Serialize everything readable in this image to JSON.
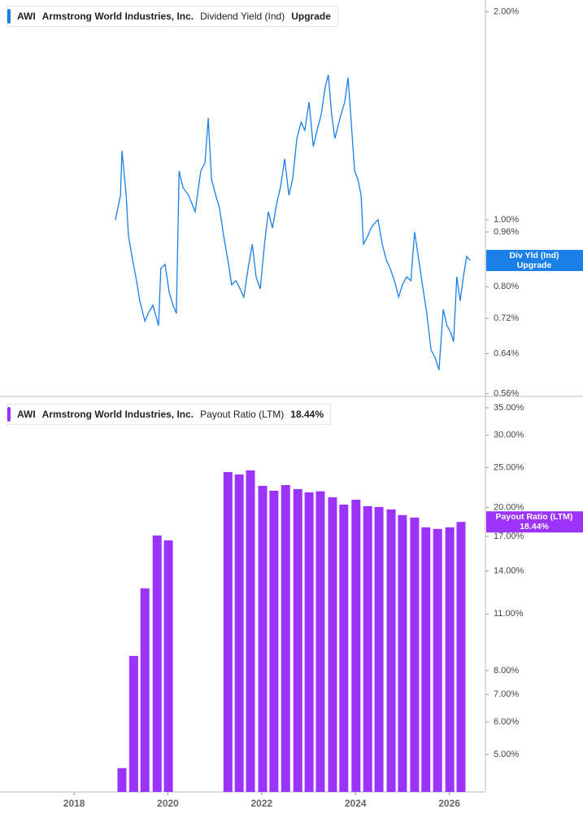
{
  "chart_data": [
    {
      "type": "line",
      "log_scale": true,
      "ticker": "AWI",
      "company": "Armstrong World Industries, Inc.",
      "series": [
        {
          "name": "Dividend Yield (Ind)",
          "short_name": "Div Yld (Ind)",
          "color": "#1a7fe6",
          "values": [
            1.0,
            1.085,
            1.259,
            1.085,
            0.947,
            0.873,
            0.816,
            0.763,
            0.713,
            0.732,
            0.752,
            0.703,
            0.85,
            0.862,
            0.784,
            0.752,
            0.732,
            1.176,
            1.114,
            1.085,
            1.027,
            1.176,
            1.209,
            1.403,
            1.145,
            1.085,
            1.041,
            0.947,
            0.873,
            0.805,
            0.816,
            0.794,
            0.773,
            0.85,
            0.922,
            0.827,
            0.794,
            0.922,
            1.027,
            0.973,
            1.056,
            1.114,
            1.225,
            1.085,
            1.145,
            1.311,
            1.384,
            1.347,
            1.481,
            1.276,
            1.347,
            1.422,
            1.564,
            1.62,
            1.422,
            1.311,
            1.403,
            1.481,
            1.606,
            1.384,
            1.176,
            1.145,
            1.085,
            0.922,
            0.947,
            0.973,
            0.987,
            1.0,
            0.922,
            0.873,
            0.85,
            0.816,
            0.773,
            0.805,
            0.827,
            0.816,
            0.96,
            0.873,
            0.794,
            0.732,
            0.648,
            0.631,
            0.606,
            0.742,
            0.703,
            0.684,
            0.666,
            0.827,
            0.763,
            0.827,
            0.885,
            0.873
          ]
        }
      ],
      "rating": "Upgrade",
      "x": [
        2018.88,
        2018.99,
        2019.02,
        2019.11,
        2019.16,
        2019.25,
        2019.33,
        2019.4,
        2019.51,
        2019.58,
        2019.68,
        2019.8,
        2019.85,
        2019.94,
        2020.03,
        2020.11,
        2020.18,
        2020.24,
        2020.32,
        2020.44,
        2020.58,
        2020.7,
        2020.79,
        2020.86,
        2020.93,
        2021.02,
        2021.1,
        2021.19,
        2021.28,
        2021.36,
        2021.45,
        2021.54,
        2021.62,
        2021.71,
        2021.8,
        2021.88,
        2021.97,
        2022.06,
        2022.14,
        2022.23,
        2022.32,
        2022.4,
        2022.49,
        2022.58,
        2022.66,
        2022.75,
        2022.84,
        2022.92,
        2023.01,
        2023.1,
        2023.18,
        2023.27,
        2023.36,
        2023.42,
        2023.49,
        2023.56,
        2023.67,
        2023.77,
        2023.84,
        2023.91,
        2023.98,
        2024.05,
        2024.12,
        2024.17,
        2024.26,
        2024.33,
        2024.4,
        2024.48,
        2024.57,
        2024.66,
        2024.74,
        2024.83,
        2024.92,
        2025.0,
        2025.09,
        2025.18,
        2025.26,
        2025.35,
        2025.44,
        2025.52,
        2025.61,
        2025.7,
        2025.78,
        2025.87,
        2025.95,
        2026.04,
        2026.09,
        2026.16,
        2026.23,
        2026.3,
        2026.37,
        2026.44
      ],
      "xlim": [
        2016.42,
        2026.77
      ],
      "ylim": [
        0.555,
        2.08
      ],
      "yticks": [
        {
          "value": 2,
          "label": "2.00%"
        },
        {
          "value": 1,
          "label": "1.00%"
        },
        {
          "value": 0.96,
          "label": "0.96%"
        },
        {
          "value": 0.8,
          "label": "0.80%"
        },
        {
          "value": 0.72,
          "label": "0.72%"
        },
        {
          "value": 0.64,
          "label": "0.64%"
        },
        {
          "value": 0.56,
          "label": "0.56%"
        }
      ]
    },
    {
      "type": "bar",
      "log_scale": true,
      "ticker": "AWI",
      "company": "Armstrong World Industries, Inc.",
      "series": [
        {
          "name": "Payout Ratio (LTM)",
          "color": "#9b33fa",
          "values": [
            4.63,
            8.69,
            12.7,
            17.09,
            16.63,
            24.4,
            24.07,
            24.63,
            22.58,
            21.97,
            22.68,
            22.17,
            21.77,
            21.9,
            21.18,
            20.33,
            20.89,
            20.15,
            20.05,
            19.78,
            19.16,
            18.9,
            17.89,
            17.73,
            17.89,
            18.44
          ]
        }
      ],
      "legend_value": "18.44%",
      "x": [
        2019.02,
        2019.27,
        2019.51,
        2019.77,
        2020.01,
        2021.28,
        2021.52,
        2021.76,
        2022.02,
        2022.26,
        2022.51,
        2022.77,
        2023.01,
        2023.25,
        2023.51,
        2023.75,
        2024.01,
        2024.26,
        2024.5,
        2024.76,
        2025.0,
        2025.26,
        2025.5,
        2025.75,
        2026.01,
        2026.25
      ],
      "xlim": [
        2016.42,
        2026.77
      ],
      "xticks": [
        2018,
        2020,
        2022,
        2024,
        2026
      ],
      "ylim": [
        4.05,
        36.3
      ],
      "yticks": [
        {
          "value": 35,
          "label": "35.00%"
        },
        {
          "value": 30,
          "label": "30.00%"
        },
        {
          "value": 25,
          "label": "25.00%"
        },
        {
          "value": 20,
          "label": "20.00%"
        },
        {
          "value": 17,
          "label": "17.00%"
        },
        {
          "value": 14,
          "label": "14.00%"
        },
        {
          "value": 11,
          "label": "11.00%"
        },
        {
          "value": 8,
          "label": "8.00%"
        },
        {
          "value": 7,
          "label": "7.00%"
        },
        {
          "value": 6,
          "label": "6.00%"
        },
        {
          "value": 5,
          "label": "5.00%"
        }
      ]
    }
  ]
}
